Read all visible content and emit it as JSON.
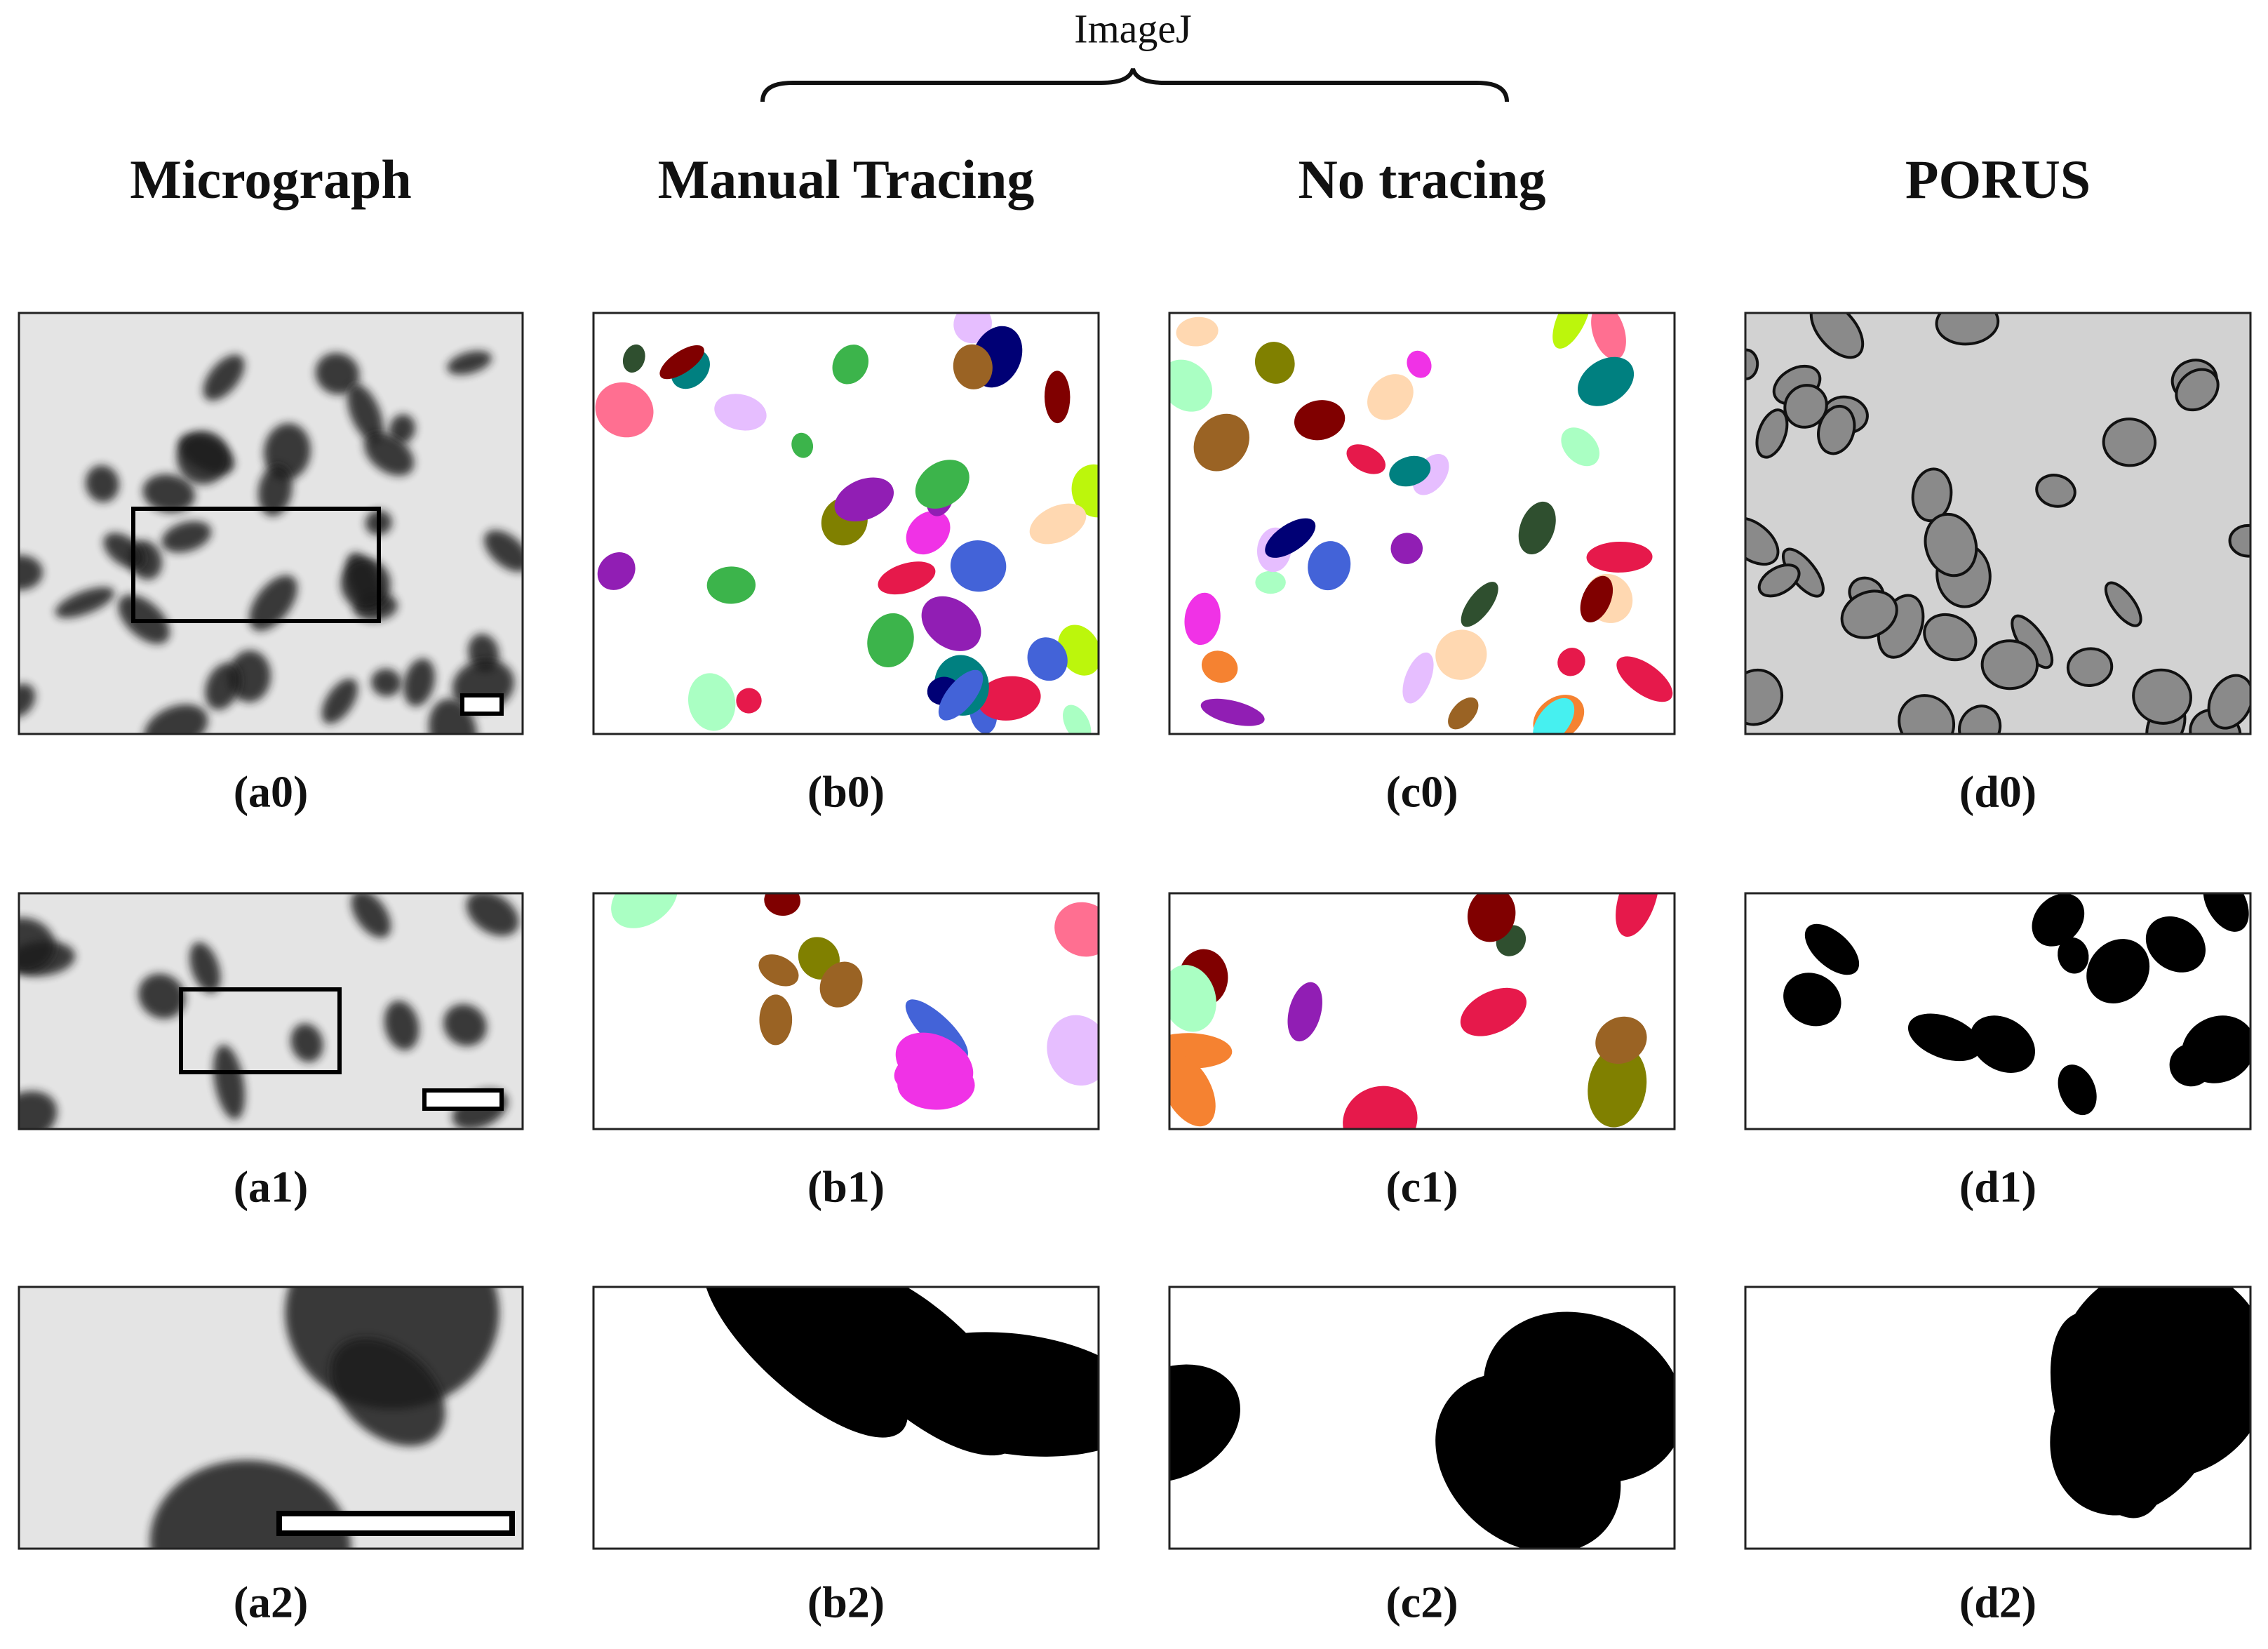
{
  "bracket_label": "ImageJ",
  "columns": [
    "Micrograph",
    "Manual Tracing",
    "No tracing",
    "PORUS"
  ],
  "panels": [
    [
      "(a0)",
      "(b0)",
      "(c0)",
      "(d0)"
    ],
    [
      "(a1)",
      "(b1)",
      "(c1)",
      "(d1)"
    ],
    [
      "(a2)",
      "(b2)",
      "(c2)",
      "(d2)"
    ]
  ]
}
